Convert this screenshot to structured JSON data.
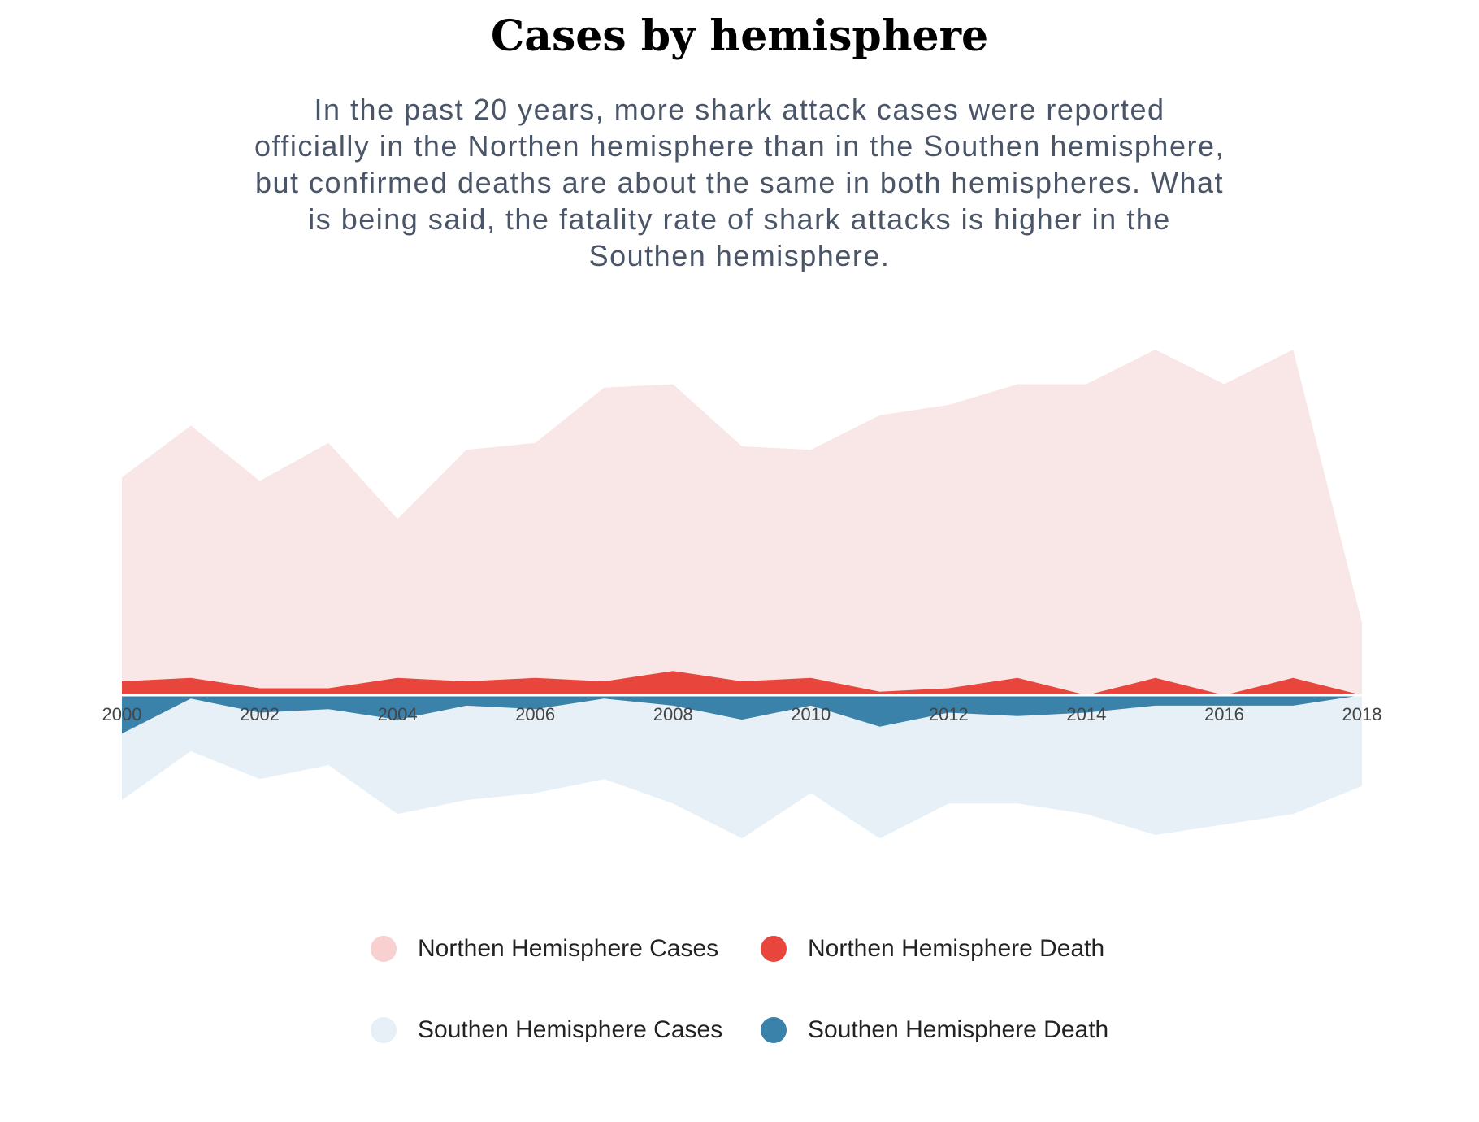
{
  "chart_data": {
    "type": "area",
    "title": "Cases by hemisphere",
    "subtitle": "In the past 20 years, more shark attack cases were reported officially in the Northen hemisphere than in the Southen hemisphere, but confirmed deaths are about the same in both hemispheres. What is being said, the fatality rate of shark attacks is higher in the Southen hemisphere.",
    "x": [
      2000,
      2001,
      2002,
      2003,
      2004,
      2005,
      2006,
      2007,
      2008,
      2009,
      2010,
      2011,
      2012,
      2013,
      2014,
      2015,
      2016,
      2017,
      2018
    ],
    "xticks": [
      "2000",
      "2002",
      "2004",
      "2006",
      "2008",
      "2010",
      "2012",
      "2014",
      "2016",
      "2018"
    ],
    "xlim": [
      2000,
      2018
    ],
    "ylim": [
      -50,
      100
    ],
    "series": [
      {
        "name": "Northen Hemisphere Cases",
        "direction": "up",
        "color": "#f9e6e6",
        "values": [
          63,
          78,
          62,
          73,
          51,
          71,
          73,
          89,
          90,
          72,
          71,
          81,
          84,
          90,
          90,
          100,
          90,
          100,
          21
        ]
      },
      {
        "name": "Northen Hemisphere Death",
        "direction": "up",
        "color": "#e8453c",
        "values": [
          4,
          5,
          2,
          2,
          5,
          4,
          5,
          4,
          7,
          4,
          5,
          1,
          2,
          5,
          0,
          5,
          0,
          5,
          0
        ]
      },
      {
        "name": "Southen Hemisphere Cases",
        "direction": "down",
        "color": "#e6f0f6",
        "values": [
          30,
          16,
          24,
          20,
          34,
          30,
          28,
          24,
          31,
          41,
          28,
          41,
          31,
          31,
          34,
          40,
          37,
          34,
          26
        ]
      },
      {
        "name": "Southen Hemisphere Death",
        "direction": "down",
        "color": "#3b82ab",
        "values": [
          11,
          1,
          5,
          4,
          7,
          3,
          4,
          1,
          3,
          7,
          3,
          9,
          5,
          6,
          5,
          3,
          3,
          3,
          0
        ]
      }
    ],
    "legend": {
      "position": "bottom",
      "items": [
        {
          "label": "Northen Hemisphere Cases",
          "color": "#f8d0d0"
        },
        {
          "label": "Northen Hemisphere Death",
          "color": "#e8453c"
        },
        {
          "label": "Southen Hemisphere Cases",
          "color": "#e6f0f6"
        },
        {
          "label": "Southen Hemisphere Death",
          "color": "#3b82ab"
        }
      ]
    },
    "grid": false
  }
}
